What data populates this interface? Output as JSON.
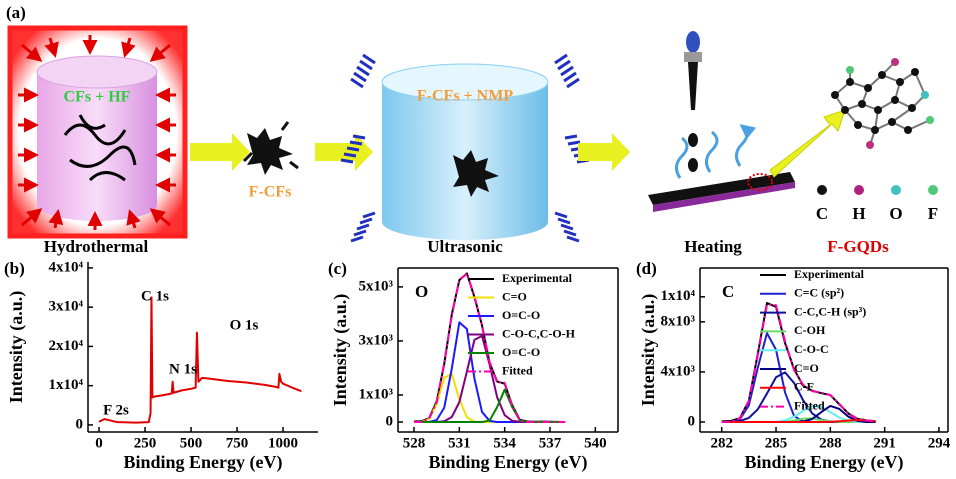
{
  "schematic": {
    "panel": "(a)",
    "step1_text": "CFs + HF",
    "step1_caption": "Hydrothermal",
    "intermediate": "F-CFs",
    "step2_text": "F-CFs + NMP",
    "step2_caption": "Ultrasonic",
    "step3_caption": "Heating",
    "product": "F-GQDs",
    "atoms": [
      "C",
      "H",
      "O",
      "F"
    ]
  },
  "chart_data": [
    {
      "type": "line",
      "panel": "(b)",
      "xlabel": "Binding Energy (eV)",
      "ylabel": "Intensity (a.u.)",
      "x": [
        0,
        30,
        100,
        200,
        270,
        280,
        285,
        290,
        300,
        350,
        395,
        400,
        405,
        450,
        500,
        525,
        532,
        540,
        560,
        600,
        700,
        800,
        900,
        950,
        975,
        980,
        990,
        1000,
        1050,
        1100
      ],
      "series": [
        {
          "color": "#e00000",
          "values": [
            800,
            1500,
            700,
            600,
            700,
            3000,
            32500,
            7000,
            7200,
            7600,
            8000,
            11000,
            8200,
            8800,
            9200,
            9500,
            23500,
            11000,
            12000,
            11800,
            11200,
            10800,
            10200,
            9800,
            9500,
            13000,
            11000,
            10500,
            9500,
            8600
          ]
        }
      ],
      "xlim": [
        -60,
        1190
      ],
      "ylim": [
        -1800,
        41500
      ],
      "xticks": [
        0,
        250,
        500,
        750,
        1000
      ],
      "yticks": [
        0,
        {
          "value": 10000,
          "label": "1x10⁴"
        },
        {
          "value": 20000,
          "label": "2x10⁴"
        },
        {
          "value": 30000,
          "label": "3x10⁴"
        },
        {
          "value": 40000,
          "label": "4x10⁴"
        }
      ],
      "annotations": [
        "C 1s",
        "N 1s",
        "O 1s",
        "F 2s"
      ]
    },
    {
      "type": "line",
      "panel": "(c)",
      "inset_label": "O",
      "xlabel": "Binding Energy (eV)",
      "ylabel": "Intensity (a.u.)",
      "x": [
        528,
        528.5,
        529,
        529.5,
        530,
        530.5,
        531,
        531.5,
        532,
        532.5,
        533,
        533.5,
        534,
        534.5,
        535,
        535.5,
        536,
        536.5,
        537,
        537.5,
        538
      ],
      "series": [
        {
          "name": "Experimental",
          "color": "#000000",
          "values": [
            20,
            30,
            140,
            760,
            2150,
            3980,
            5250,
            5500,
            4620,
            3580,
            2200,
            1500,
            1420,
            620,
            80,
            20,
            10,
            15,
            10,
            5,
            0
          ]
        },
        {
          "name": "C=O",
          "color": "#f0e000",
          "values": [
            0,
            0,
            116,
            659,
            1638,
            1778,
            845,
            176,
            16,
            0,
            0,
            0,
            0,
            0,
            0,
            0,
            0,
            0,
            0,
            0,
            0
          ]
        },
        {
          "name": "O=C-O",
          "color": "#1a1aff",
          "values": [
            0,
            0,
            5,
            70,
            528,
            1977,
            3689,
            3441,
            1603,
            372,
            43,
            1,
            0,
            0,
            0,
            0,
            0,
            0,
            0,
            0,
            0
          ]
        },
        {
          "name": "C-O-C,C-O-H",
          "color": "#800080",
          "values": [
            0,
            0,
            0,
            0,
            30,
            185,
            736,
            1868,
            3046,
            3184,
            2134,
            918,
            253,
            45,
            5,
            0,
            0,
            0,
            0,
            0,
            0
          ]
        },
        {
          "name": "O=C-O",
          "color": "#008000",
          "values": [
            0,
            0,
            0,
            0,
            0,
            0,
            0,
            0,
            0,
            0,
            53,
            550,
            1200,
            550,
            53,
            0,
            0,
            0,
            0,
            0,
            0
          ]
        },
        {
          "name": "Fitted",
          "color": "#ff00aa",
          "dash": "dashdot",
          "values": [
            0,
            0,
            121,
            729,
            2196,
            3940,
            5270,
            5485,
            4665,
            3556,
            2230,
            1469,
            1453,
            595,
            58,
            0,
            0,
            0,
            0,
            0,
            0
          ]
        }
      ],
      "xlim": [
        526.94,
        541.5
      ],
      "ylim": [
        -370,
        5700
      ],
      "xticks": [
        528,
        531,
        534,
        537,
        540
      ],
      "yticks": [
        0,
        {
          "value": 1000,
          "label": "1x10³"
        },
        {
          "value": 3000,
          "label": "3x10³"
        },
        {
          "value": 5000,
          "label": "5x10³"
        }
      ]
    },
    {
      "type": "line",
      "panel": "(d)",
      "inset_label": "C",
      "xlabel": "Binding Energy (eV)",
      "ylabel": "Intensity (a.u.)",
      "x": [
        282,
        282.5,
        283,
        283.5,
        284,
        284.5,
        285,
        285.5,
        286,
        286.5,
        287,
        287.5,
        288,
        288.5,
        289,
        289.5,
        290,
        290.5
      ],
      "series": [
        {
          "name": "Experimental",
          "color": "#000000",
          "values": [
            50,
            80,
            300,
            1700,
            5500,
            9500,
            9200,
            6300,
            4200,
            2900,
            2500,
            2300,
            2150,
            1400,
            680,
            250,
            130,
            60
          ]
        },
        {
          "name": "C=C (sp²)",
          "color": "#2020d0",
          "values": [
            0,
            0,
            205,
            1342,
            4368,
            7100,
            5768,
            2340,
            474,
            48,
            0,
            0,
            0,
            0,
            0,
            0,
            0,
            0
          ]
        },
        {
          "name": "C-C,C-H (sp³)",
          "color": "#1010a0",
          "values": [
            0,
            0,
            74,
            327,
            1024,
            2279,
            3570,
            3962,
            3108,
            1728,
            680,
            188,
            37,
            0,
            0,
            0,
            0,
            0
          ]
        },
        {
          "name": "C-OH",
          "color": "#66dd66",
          "values": [
            0,
            0,
            0,
            0,
            0,
            0,
            0,
            0,
            123,
            265,
            284,
            152,
            41,
            0,
            0,
            0,
            0,
            0
          ]
        },
        {
          "name": "C-O-C",
          "color": "#66eeee",
          "values": [
            0,
            0,
            0,
            0,
            0,
            0,
            0,
            136,
            422,
            887,
            1260,
            1212,
            789,
            347,
            104,
            0,
            0,
            0
          ]
        },
        {
          "name": "C=O",
          "color": "#000080",
          "values": [
            0,
            0,
            0,
            0,
            0,
            0,
            0,
            0,
            0,
            37,
            242,
            789,
            1282,
            1041,
            422,
            86,
            0,
            0
          ]
        },
        {
          "name": "C-F",
          "color": "#ff0000",
          "values": [
            0,
            0,
            0,
            0,
            0,
            0,
            0,
            0,
            0,
            0,
            0,
            0,
            13,
            54,
            116,
            150,
            116,
            54
          ]
        },
        {
          "name": "Fitted",
          "color": "#ff00aa",
          "dash": "dashdot",
          "values": [
            0,
            0,
            279,
            1669,
            5392,
            9379,
            9338,
            6438,
            4127,
            2965,
            2466,
            2341,
            2162,
            1442,
            642,
            236,
            116,
            54
          ]
        }
      ],
      "xlim": [
        280.8,
        294.5
      ],
      "ylim": [
        -800,
        12300
      ],
      "xticks": [
        282,
        285,
        288,
        291,
        294
      ],
      "yticks": [
        0,
        {
          "value": 4000,
          "label": "4x10³"
        },
        {
          "value": 8000,
          "label": "8x10³"
        },
        {
          "value": 10000,
          "label": "1x10⁴"
        }
      ]
    }
  ]
}
